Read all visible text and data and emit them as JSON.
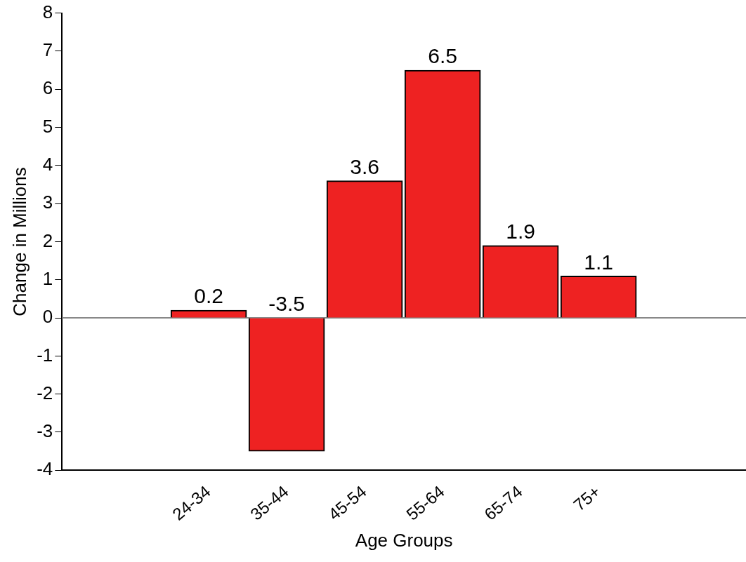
{
  "chart_data": {
    "type": "bar",
    "xlabel": "Age Groups",
    "ylabel": "Change in Millions",
    "categories": [
      "24-34",
      "35-44",
      "45-54",
      "55-64",
      "65-74",
      "75+"
    ],
    "values": [
      0.2,
      -3.5,
      3.6,
      6.5,
      1.9,
      1.1
    ],
    "color": "#ee2222",
    "ylim": [
      -4,
      8
    ],
    "yticks": [
      -4,
      -3,
      -2,
      -1,
      0,
      1,
      2,
      3,
      4,
      5,
      6,
      7,
      8
    ],
    "ref_lines": [
      {
        "axis": "y",
        "value": 0,
        "color": "#888888"
      }
    ],
    "data_labels": true,
    "grid": false,
    "legend": false
  }
}
